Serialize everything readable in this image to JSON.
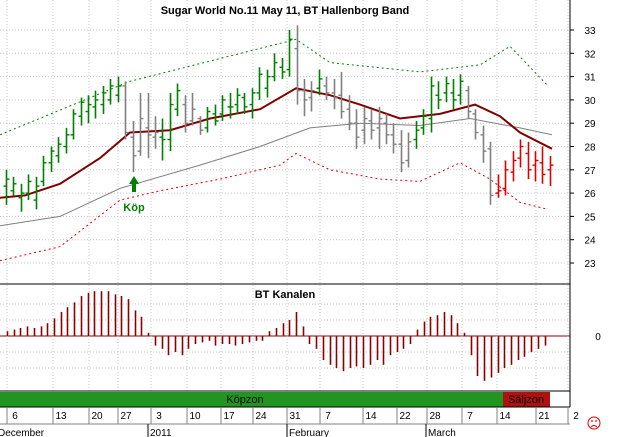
{
  "chart_data": [
    {
      "type": "ohlc",
      "title": "Sugar World No.11 May 11, BT Hallenborg Band",
      "ylim": [
        22,
        34
      ],
      "yticks": [
        23,
        24,
        25,
        26,
        27,
        28,
        29,
        30,
        31,
        32,
        33
      ],
      "bars": [
        {
          "o": 26.3,
          "h": 27.0,
          "l": 25.5,
          "c": 26.6,
          "col": "green"
        },
        {
          "o": 26.1,
          "h": 26.7,
          "l": 25.9,
          "c": 26.4,
          "col": "green"
        },
        {
          "o": 25.8,
          "h": 26.4,
          "l": 25.2,
          "c": 26.0,
          "col": "green"
        },
        {
          "o": 26.0,
          "h": 26.8,
          "l": 25.7,
          "c": 26.5,
          "col": "green"
        },
        {
          "o": 25.7,
          "h": 26.7,
          "l": 25.3,
          "c": 26.3,
          "col": "green"
        },
        {
          "o": 26.5,
          "h": 27.6,
          "l": 26.3,
          "c": 27.3,
          "col": "green"
        },
        {
          "o": 27.3,
          "h": 28.0,
          "l": 26.9,
          "c": 27.8,
          "col": "green"
        },
        {
          "o": 27.6,
          "h": 28.4,
          "l": 27.3,
          "c": 28.1,
          "col": "green"
        },
        {
          "o": 28.0,
          "h": 28.8,
          "l": 27.7,
          "c": 28.5,
          "col": "green"
        },
        {
          "o": 28.5,
          "h": 29.6,
          "l": 28.3,
          "c": 29.4,
          "col": "green"
        },
        {
          "o": 29.3,
          "h": 30.1,
          "l": 28.9,
          "c": 29.9,
          "col": "green"
        },
        {
          "o": 29.5,
          "h": 30.2,
          "l": 29.0,
          "c": 29.8,
          "col": "green"
        },
        {
          "o": 29.7,
          "h": 30.4,
          "l": 29.2,
          "c": 30.0,
          "col": "green"
        },
        {
          "o": 29.8,
          "h": 30.6,
          "l": 29.4,
          "c": 30.3,
          "col": "green"
        },
        {
          "o": 30.0,
          "h": 30.9,
          "l": 29.8,
          "c": 30.6,
          "col": "green"
        },
        {
          "o": 30.2,
          "h": 31.0,
          "l": 29.9,
          "c": 30.6,
          "col": "green"
        },
        {
          "o": 30.6,
          "h": 30.8,
          "l": 28.3,
          "c": 28.6,
          "col": "gray"
        },
        {
          "o": 28.4,
          "h": 29.1,
          "l": 26.9,
          "c": 27.6,
          "col": "gray"
        },
        {
          "o": 27.8,
          "h": 30.3,
          "l": 27.6,
          "c": 29.2,
          "col": "gray"
        },
        {
          "o": 28.8,
          "h": 30.3,
          "l": 27.5,
          "c": 28.5,
          "col": "gray"
        },
        {
          "o": 28.4,
          "h": 29.3,
          "l": 27.9,
          "c": 28.6,
          "col": "gray"
        },
        {
          "o": 28.4,
          "h": 29.2,
          "l": 27.4,
          "c": 28.3,
          "col": "green"
        },
        {
          "o": 28.3,
          "h": 30.3,
          "l": 27.8,
          "c": 29.8,
          "col": "green"
        },
        {
          "o": 29.6,
          "h": 30.7,
          "l": 29.3,
          "c": 30.4,
          "col": "green"
        },
        {
          "o": 29.8,
          "h": 30.2,
          "l": 28.6,
          "c": 29.0,
          "col": "gray"
        },
        {
          "o": 29.1,
          "h": 30.3,
          "l": 28.9,
          "c": 29.6,
          "col": "gray"
        },
        {
          "o": 29.2,
          "h": 29.3,
          "l": 28.5,
          "c": 28.7,
          "col": "gray"
        },
        {
          "o": 28.8,
          "h": 29.7,
          "l": 28.6,
          "c": 29.5,
          "col": "green"
        },
        {
          "o": 29.4,
          "h": 29.8,
          "l": 28.9,
          "c": 29.1,
          "col": "green"
        },
        {
          "o": 29.4,
          "h": 30.2,
          "l": 29.1,
          "c": 30.0,
          "col": "green"
        },
        {
          "o": 29.7,
          "h": 30.3,
          "l": 29.2,
          "c": 29.7,
          "col": "green"
        },
        {
          "o": 29.8,
          "h": 30.5,
          "l": 29.4,
          "c": 30.2,
          "col": "green"
        },
        {
          "o": 30.1,
          "h": 30.3,
          "l": 29.4,
          "c": 29.7,
          "col": "green"
        },
        {
          "o": 29.8,
          "h": 30.5,
          "l": 29.2,
          "c": 30.3,
          "col": "green"
        },
        {
          "o": 30.3,
          "h": 31.4,
          "l": 30.0,
          "c": 31.1,
          "col": "green"
        },
        {
          "o": 30.5,
          "h": 31.3,
          "l": 30.1,
          "c": 31.0,
          "col": "green"
        },
        {
          "o": 31.0,
          "h": 32.0,
          "l": 30.8,
          "c": 31.6,
          "col": "green"
        },
        {
          "o": 31.4,
          "h": 31.8,
          "l": 30.9,
          "c": 31.2,
          "col": "green"
        },
        {
          "o": 31.3,
          "h": 33.0,
          "l": 31.0,
          "c": 32.6,
          "col": "green"
        },
        {
          "o": 32.2,
          "h": 33.2,
          "l": 29.8,
          "c": 30.4,
          "col": "gray"
        },
        {
          "o": 30.4,
          "h": 30.9,
          "l": 29.3,
          "c": 30.0,
          "col": "gray"
        },
        {
          "o": 30.1,
          "h": 30.8,
          "l": 29.5,
          "c": 30.4,
          "col": "gray"
        },
        {
          "o": 30.5,
          "h": 31.3,
          "l": 30.2,
          "c": 30.9,
          "col": "green"
        },
        {
          "o": 30.6,
          "h": 31.0,
          "l": 30.0,
          "c": 30.3,
          "col": "gray"
        },
        {
          "o": 30.3,
          "h": 30.9,
          "l": 29.6,
          "c": 30.1,
          "col": "gray"
        },
        {
          "o": 30.2,
          "h": 31.2,
          "l": 29.2,
          "c": 29.5,
          "col": "gray"
        },
        {
          "o": 29.6,
          "h": 30.2,
          "l": 28.7,
          "c": 29.0,
          "col": "gray"
        },
        {
          "o": 29.0,
          "h": 29.6,
          "l": 27.9,
          "c": 28.4,
          "col": "gray"
        },
        {
          "o": 28.7,
          "h": 29.7,
          "l": 28.1,
          "c": 29.2,
          "col": "gray"
        },
        {
          "o": 29.1,
          "h": 29.6,
          "l": 28.3,
          "c": 28.7,
          "col": "gray"
        },
        {
          "o": 28.8,
          "h": 29.7,
          "l": 27.9,
          "c": 29.2,
          "col": "gray"
        },
        {
          "o": 29.0,
          "h": 29.4,
          "l": 28.1,
          "c": 28.5,
          "col": "gray"
        },
        {
          "o": 28.5,
          "h": 29.0,
          "l": 27.7,
          "c": 28.1,
          "col": "gray"
        },
        {
          "o": 28.1,
          "h": 28.7,
          "l": 26.9,
          "c": 27.3,
          "col": "gray"
        },
        {
          "o": 27.4,
          "h": 28.6,
          "l": 27.1,
          "c": 28.2,
          "col": "gray"
        },
        {
          "o": 28.3,
          "h": 29.1,
          "l": 27.9,
          "c": 28.7,
          "col": "green"
        },
        {
          "o": 28.8,
          "h": 29.6,
          "l": 28.5,
          "c": 29.3,
          "col": "green"
        },
        {
          "o": 29.2,
          "h": 31.0,
          "l": 28.6,
          "c": 30.6,
          "col": "green"
        },
        {
          "o": 30.2,
          "h": 30.8,
          "l": 29.6,
          "c": 30.0,
          "col": "green"
        },
        {
          "o": 30.3,
          "h": 31.0,
          "l": 29.9,
          "c": 30.7,
          "col": "green"
        },
        {
          "o": 30.3,
          "h": 30.9,
          "l": 29.6,
          "c": 30.0,
          "col": "green"
        },
        {
          "o": 30.2,
          "h": 31.1,
          "l": 29.8,
          "c": 30.8,
          "col": "green"
        },
        {
          "o": 30.4,
          "h": 30.6,
          "l": 29.2,
          "c": 29.5,
          "col": "gray"
        },
        {
          "o": 29.4,
          "h": 29.6,
          "l": 28.3,
          "c": 28.6,
          "col": "gray"
        },
        {
          "o": 28.5,
          "h": 28.9,
          "l": 27.3,
          "c": 27.8,
          "col": "gray"
        },
        {
          "o": 27.9,
          "h": 28.2,
          "l": 25.5,
          "c": 25.9,
          "col": "gray"
        },
        {
          "o": 26.0,
          "h": 26.8,
          "l": 25.8,
          "c": 26.1,
          "col": "red"
        },
        {
          "o": 26.2,
          "h": 27.4,
          "l": 25.9,
          "c": 27.0,
          "col": "red"
        },
        {
          "o": 26.9,
          "h": 27.8,
          "l": 26.5,
          "c": 27.4,
          "col": "red"
        },
        {
          "o": 27.5,
          "h": 28.3,
          "l": 27.1,
          "c": 28.0,
          "col": "red"
        },
        {
          "o": 27.7,
          "h": 28.2,
          "l": 26.6,
          "c": 27.0,
          "col": "red"
        },
        {
          "o": 27.2,
          "h": 27.8,
          "l": 26.5,
          "c": 27.4,
          "col": "red"
        },
        {
          "o": 27.3,
          "h": 28.0,
          "l": 26.4,
          "c": 26.8,
          "col": "red"
        },
        {
          "o": 27.0,
          "h": 27.6,
          "l": 26.3,
          "c": 27.2,
          "col": "red"
        }
      ],
      "bands": {
        "upper_dotted": [
          [
            0,
            28.5
          ],
          [
            130,
            30.8
          ],
          [
            296,
            32.6
          ],
          [
            330,
            31.6
          ],
          [
            420,
            31.2
          ],
          [
            480,
            31.5
          ],
          [
            510,
            32.3
          ],
          [
            548,
            30.6
          ]
        ],
        "middle_thick": [
          [
            0,
            25.8
          ],
          [
            25,
            25.9
          ],
          [
            60,
            26.4
          ],
          [
            100,
            27.5
          ],
          [
            130,
            28.6
          ],
          [
            170,
            28.7
          ],
          [
            210,
            29.2
          ],
          [
            260,
            29.6
          ],
          [
            296,
            30.5
          ],
          [
            330,
            30.2
          ],
          [
            360,
            29.8
          ],
          [
            400,
            29.2
          ],
          [
            440,
            29.4
          ],
          [
            475,
            29.8
          ],
          [
            500,
            29.3
          ],
          [
            520,
            28.6
          ],
          [
            552,
            27.9
          ]
        ],
        "lower_thin": [
          [
            0,
            24.6
          ],
          [
            60,
            25.0
          ],
          [
            120,
            26.2
          ],
          [
            200,
            27.2
          ],
          [
            260,
            28.0
          ],
          [
            310,
            28.8
          ],
          [
            360,
            29.0
          ],
          [
            420,
            28.9
          ],
          [
            470,
            29.2
          ],
          [
            520,
            28.8
          ],
          [
            552,
            28.5
          ]
        ],
        "lower_dotted": [
          [
            0,
            23.1
          ],
          [
            60,
            23.7
          ],
          [
            120,
            25.7
          ],
          [
            160,
            26.1
          ],
          [
            220,
            26.6
          ],
          [
            280,
            27.2
          ],
          [
            296,
            27.7
          ],
          [
            330,
            27.0
          ],
          [
            380,
            26.6
          ],
          [
            420,
            26.5
          ],
          [
            460,
            27.3
          ],
          [
            490,
            26.6
          ],
          [
            520,
            25.6
          ],
          [
            548,
            25.3
          ]
        ]
      },
      "annotation": "Köp"
    },
    {
      "type": "bar",
      "title": "BT Kanalen",
      "yticks": [
        0
      ],
      "values": [
        0.3,
        0.4,
        0.5,
        0.6,
        0.5,
        0.6,
        0.8,
        1.1,
        1.5,
        1.8,
        2.1,
        2.5,
        2.7,
        2.8,
        2.8,
        2.8,
        2.6,
        2.5,
        2.3,
        1.6,
        1.2,
        0.2,
        -0.6,
        -0.8,
        -1.2,
        -1.0,
        -1.2,
        -0.8,
        -0.5,
        -0.4,
        -0.3,
        -0.6,
        -0.5,
        -0.5,
        -0.6,
        -0.5,
        -0.4,
        -0.3,
        -0.3,
        0.3,
        0.5,
        0.8,
        1.0,
        1.5,
        0.6,
        -0.5,
        -0.8,
        -1.5,
        -1.8,
        -2.0,
        -2.2,
        -2.0,
        -1.9,
        -2.0,
        -1.8,
        -1.5,
        -1.8,
        -1.2,
        -1.0,
        -0.8,
        -0.5,
        0.4,
        0.9,
        1.2,
        1.3,
        1.5,
        1.3,
        0.8,
        0.2,
        -1.2,
        -2.5,
        -2.8,
        -2.6,
        -2.3,
        -2.0,
        -1.8,
        -1.5,
        -1.3,
        -1.0,
        -0.8,
        -0.6
      ],
      "zones": [
        {
          "label": "Köpzon",
          "color": "#209620"
        },
        {
          "label": "Säljzon",
          "color": "#b01010"
        }
      ]
    }
  ],
  "x_axis": {
    "day_ticks": [
      "6",
      "13",
      "20",
      "27",
      "3",
      "10",
      "17",
      "24",
      "31",
      "7",
      "14",
      "22",
      "28",
      "7",
      "14",
      "21",
      "2"
    ],
    "month_labels": [
      "December",
      "2011",
      "February",
      "March"
    ]
  },
  "colors": {
    "green": "#008000",
    "gray": "#808080",
    "red": "#e00000",
    "band_main": "#800000",
    "band_thin": "#808080",
    "band_dotted": "#008000",
    "band_dotted_low": "#e00000",
    "osc": "#8b0000"
  },
  "icons": {
    "corner": "sad-face-icon"
  }
}
